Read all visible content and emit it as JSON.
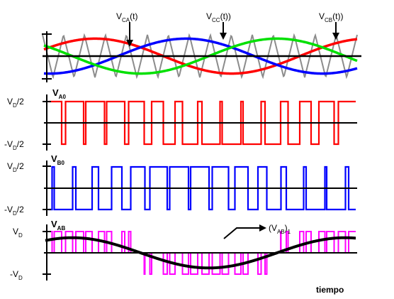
{
  "diagram": {
    "title": "",
    "top_panel": {
      "labels": [
        {
          "main": "V",
          "sub": "CA",
          "rest": "(t)"
        },
        {
          "main": "V",
          "sub": "CC",
          "rest": "(t))"
        },
        {
          "main": "V",
          "sub": "CB",
          "rest": "(t))"
        }
      ]
    },
    "panel_a0": {
      "name": {
        "main": "V",
        "sub": "A0"
      },
      "y_high": {
        "main": "V",
        "sub": "D",
        "rest": "/2"
      },
      "y_low": {
        "main": "-V",
        "sub": "D",
        "rest": "/2"
      }
    },
    "panel_b0": {
      "name": {
        "main": "V",
        "sub": "B0"
      },
      "y_high": {
        "main": "V",
        "sub": "D",
        "rest": "/2"
      },
      "y_low": {
        "main": "-V",
        "sub": "D",
        "rest": "/2"
      }
    },
    "panel_ab": {
      "name": {
        "main": "V",
        "sub": "AB"
      },
      "y_high": {
        "main": "V",
        "sub": "D"
      },
      "y_low": {
        "main": "-V",
        "sub": "D"
      },
      "fundamental": {
        "main": "(V",
        "sub": "AB",
        "rest": ")",
        "sub2": "1"
      }
    },
    "x_label": "tiempo",
    "colors": {
      "carrier": "#8c8c8c",
      "phase_a": "#ff0000",
      "phase_b": "#0000ff",
      "phase_c": "#00e000",
      "line_voltage": "#ff00ff",
      "axis": "#000000"
    }
  }
}
